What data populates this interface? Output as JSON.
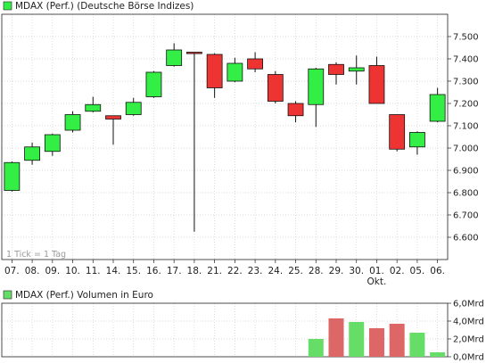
{
  "chart_data": [
    {
      "type": "candlestick",
      "legend_label": "MDAX (Perf.) (Deutsche Börse Indizes)",
      "note": "1 Tick = 1 Tag",
      "categories": [
        "07.",
        "08.",
        "09.",
        "10.",
        "11.",
        "14.",
        "15.",
        "16.",
        "17.",
        "18.",
        "21.",
        "22.",
        "23.",
        "24.",
        "25.",
        "28.",
        "29.",
        "30.",
        "01.",
        "02.",
        "05.",
        "06."
      ],
      "sub_labels": {
        "18": "Okt."
      },
      "ylim": [
        6500,
        7600
      ],
      "yticks": [
        6600,
        6700,
        6800,
        6900,
        7000,
        7100,
        7200,
        7300,
        7400,
        7500
      ],
      "ytick_labels": [
        "6.600",
        "6.700",
        "6.800",
        "6.900",
        "7.000",
        "7.100",
        "7.200",
        "7.300",
        "7.400",
        "7.500"
      ],
      "candles": [
        {
          "open": 6810,
          "close": 6935,
          "high": 6940,
          "low": 6805
        },
        {
          "open": 6945,
          "close": 7005,
          "high": 7025,
          "low": 6925
        },
        {
          "open": 6985,
          "close": 7060,
          "high": 7065,
          "low": 6965
        },
        {
          "open": 7080,
          "close": 7150,
          "high": 7165,
          "low": 7070
        },
        {
          "open": 7165,
          "close": 7195,
          "high": 7230,
          "low": 7160
        },
        {
          "open": 7145,
          "close": 7130,
          "high": 7145,
          "low": 7015
        },
        {
          "open": 7150,
          "close": 7205,
          "high": 7225,
          "low": 7145
        },
        {
          "open": 7230,
          "close": 7340,
          "high": 7345,
          "low": 7225
        },
        {
          "open": 7370,
          "close": 7440,
          "high": 7470,
          "low": 7365
        },
        {
          "open": 7430,
          "close": 7425,
          "high": 7430,
          "low": 6625
        },
        {
          "open": 7420,
          "close": 7270,
          "high": 7425,
          "low": 7225
        },
        {
          "open": 7300,
          "close": 7380,
          "high": 7405,
          "low": 7295
        },
        {
          "open": 7400,
          "close": 7355,
          "high": 7430,
          "low": 7340
        },
        {
          "open": 7330,
          "close": 7210,
          "high": 7345,
          "low": 7200
        },
        {
          "open": 7200,
          "close": 7145,
          "high": 7210,
          "low": 7115
        },
        {
          "open": 7195,
          "close": 7355,
          "high": 7360,
          "low": 7095
        },
        {
          "open": 7375,
          "close": 7330,
          "high": 7385,
          "low": 7285
        },
        {
          "open": 7345,
          "close": 7360,
          "high": 7415,
          "low": 7285
        },
        {
          "open": 7370,
          "close": 7200,
          "high": 7410,
          "low": 7200
        },
        {
          "open": 7150,
          "close": 6995,
          "high": 7150,
          "low": 6985
        },
        {
          "open": 7005,
          "close": 7070,
          "high": 7075,
          "low": 6970
        },
        {
          "open": 7120,
          "close": 7240,
          "high": 7270,
          "low": 7115
        }
      ]
    },
    {
      "type": "bar",
      "legend_label": "MDAX (Perf.) Volumen in Euro",
      "categories": [
        "07.",
        "08.",
        "09.",
        "10.",
        "11.",
        "14.",
        "15.",
        "16.",
        "17.",
        "18.",
        "21.",
        "22.",
        "23.",
        "24.",
        "25.",
        "28.",
        "29.",
        "30.",
        "01.",
        "02.",
        "05.",
        "06."
      ],
      "ylim": [
        0,
        6
      ],
      "yticks": [
        0,
        2,
        4,
        6
      ],
      "ytick_labels": [
        "0,0Mrd",
        "2,0Mrd",
        "4,0Mrd",
        "6,0Mrd"
      ],
      "values": [
        null,
        null,
        null,
        null,
        null,
        null,
        null,
        null,
        null,
        null,
        null,
        null,
        null,
        null,
        null,
        2.0,
        4.3,
        3.9,
        3.2,
        3.7,
        2.7,
        0.5
      ],
      "up": [
        true,
        true,
        true,
        true,
        true,
        false,
        true,
        true,
        true,
        false,
        false,
        true,
        false,
        false,
        false,
        true,
        false,
        true,
        false,
        false,
        true,
        true
      ]
    }
  ],
  "colors": {
    "up": "#33ee44",
    "down": "#ee3333",
    "vol_up": "#66dd66",
    "vol_down": "#dd6666",
    "grid": "#cfcfcf",
    "frame": "#222222"
  }
}
